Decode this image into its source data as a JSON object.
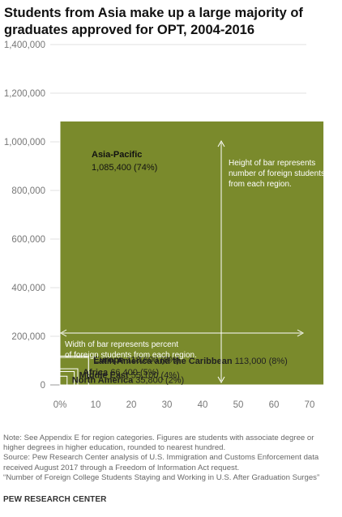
{
  "title": {
    "line1": "Students from Asia make up a large majority of",
    "line2": "graduates approved for OPT, 2004-2016"
  },
  "chart_data": {
    "type": "bar",
    "subtype": "variable-width (marimekko)",
    "x_axis": {
      "range": [
        0,
        74
      ],
      "ticks": [
        0,
        10,
        20,
        30,
        40,
        50,
        60,
        70
      ],
      "tick_labels": [
        "0%",
        "10",
        "20",
        "30",
        "40",
        "50",
        "60",
        "70"
      ]
    },
    "y_axis": {
      "range": [
        0,
        1450000
      ],
      "ticks": [
        0,
        200000,
        400000,
        600000,
        800000,
        1000000,
        1200000,
        1400000
      ],
      "tick_labels": [
        "0",
        "200,000",
        "400,000",
        "600,000",
        "800,000",
        "1,000,000",
        "1,200,000",
        "1,400,000"
      ]
    },
    "grid": true,
    "bar_color": "#7a8a2c",
    "categories": [
      "North America",
      "Middle East",
      "Africa",
      "Latin America and the Caribbean",
      "Europe",
      "Asia-Pacific"
    ],
    "values": [
      35800,
      55100,
      66400,
      113000,
      118600,
      1085400
    ],
    "widths_pct": [
      2,
      4,
      5,
      8,
      8,
      74
    ],
    "value_labels": [
      "35,800",
      "55,100",
      "66,400",
      "113,000",
      "118,600",
      "1,085,400"
    ],
    "pct_labels": [
      "(2%)",
      "(4%)",
      "(5%)",
      "(8%)",
      "(8%)",
      "(74%)"
    ],
    "annotations": {
      "height": [
        "Height of bar represents",
        "number of foreign students",
        "from each region."
      ],
      "width": [
        "Width of bar represents percent",
        "of foreign students from each region."
      ]
    }
  },
  "notes": {
    "line1": "Note: See Appendix E for region categories. Figures are students with associate degree or",
    "line2": "higher degrees in higher education, rounded to nearest hundred.",
    "line3": "Source: Pew Research Center analysis of U.S. Immigration and Customs Enforcement data",
    "line4": "received August 2017 through a Freedom of Information Act request.",
    "line5": "“Number of Foreign College Students Staying and Working in U.S. After Graduation Surges”"
  },
  "brand": "PEW RESEARCH CENTER"
}
